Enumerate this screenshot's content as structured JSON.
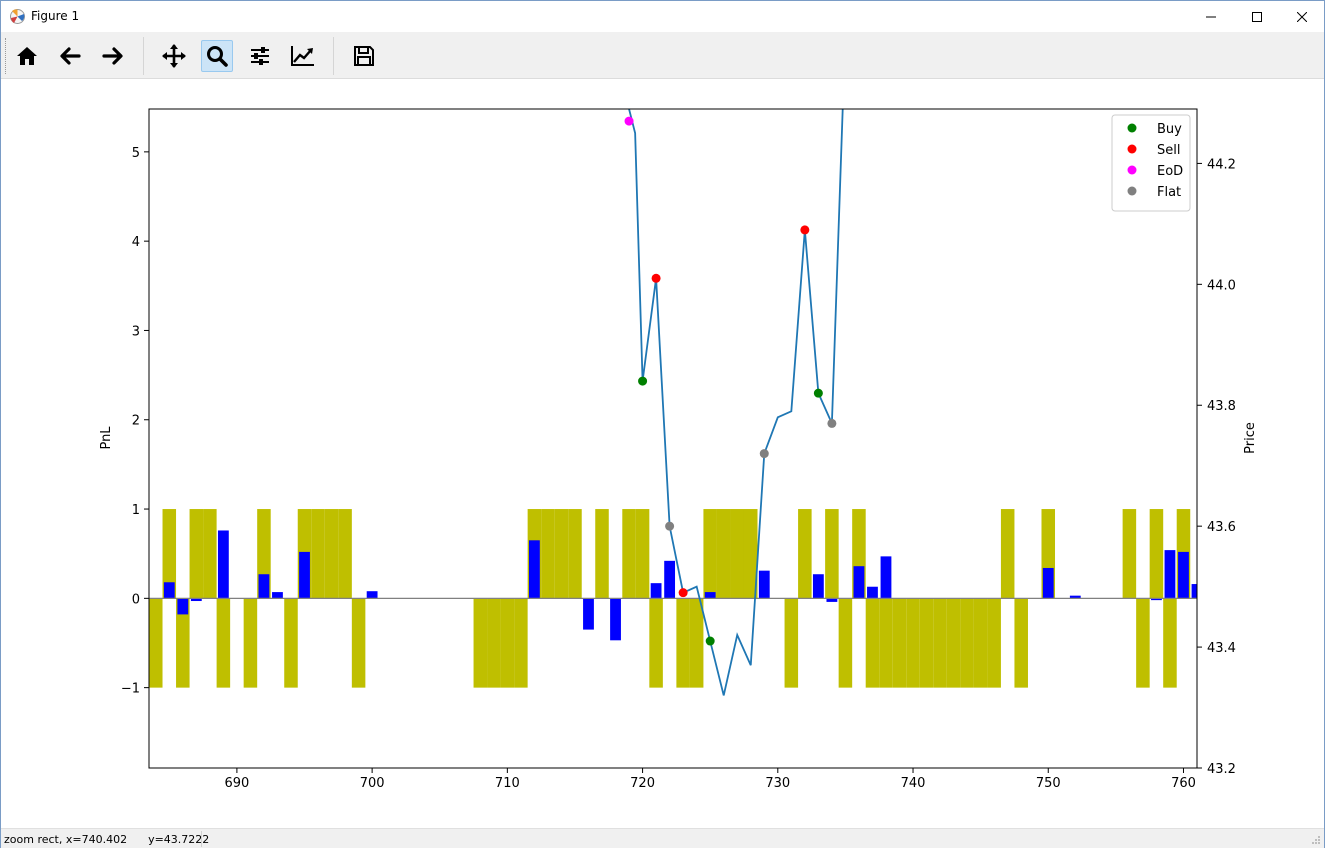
{
  "window": {
    "title": "Figure 1"
  },
  "toolbar": {
    "buttons": [
      {
        "name": "home-button",
        "icon": "home-icon"
      },
      {
        "name": "back-button",
        "icon": "arrow-left-icon"
      },
      {
        "name": "forward-button",
        "icon": "arrow-right-icon"
      },
      {
        "name": "pan-button",
        "icon": "move-icon"
      },
      {
        "name": "zoom-button",
        "icon": "magnifier-icon",
        "active": true
      },
      {
        "name": "subplots-button",
        "icon": "sliders-icon"
      },
      {
        "name": "axes-edit-button",
        "icon": "chart-line-icon"
      },
      {
        "name": "save-button",
        "icon": "floppy-icon"
      }
    ]
  },
  "status": {
    "mode": "zoom rect",
    "x_readout": "x=740.402",
    "y_readout": "y=43.7222"
  },
  "chart_data": {
    "type": "bar+line+scatter",
    "xlabel": "",
    "ylabel_left": "PnL",
    "ylabel_right": "Price",
    "xlim": [
      683.5,
      761
    ],
    "ylim_left": [
      -1.9,
      5.48
    ],
    "ylim_right": [
      43.2,
      44.29
    ],
    "xticks": [
      690,
      700,
      710,
      720,
      730,
      740,
      750,
      760
    ],
    "yticks_left": [
      -1,
      0,
      1,
      2,
      3,
      4,
      5
    ],
    "yticks_right": [
      "43.2",
      "43.4",
      "43.6",
      "43.8",
      "44.0",
      "44.2"
    ],
    "colors": {
      "position": "#bfbf00",
      "pnl": "#0000ff",
      "price": "#1f77b4",
      "buy": "#008000",
      "sell": "#ff0000",
      "eod": "#ff00ff",
      "flat": "#808080",
      "zero_line": "#808080"
    },
    "position_series": [
      [
        684,
        -1
      ],
      [
        685,
        1
      ],
      [
        686,
        -1
      ],
      [
        687,
        1
      ],
      [
        688,
        1
      ],
      [
        689,
        -1
      ],
      [
        690,
        0
      ],
      [
        691,
        -1
      ],
      [
        692,
        1
      ],
      [
        693,
        0
      ],
      [
        694,
        -1
      ],
      [
        695,
        1
      ],
      [
        696,
        1
      ],
      [
        697,
        1
      ],
      [
        698,
        1
      ],
      [
        699,
        -1
      ],
      [
        700,
        0
      ],
      [
        701,
        0
      ],
      [
        702,
        0
      ],
      [
        703,
        0
      ],
      [
        704,
        0
      ],
      [
        705,
        0
      ],
      [
        706,
        0
      ],
      [
        707,
        0
      ],
      [
        708,
        -1
      ],
      [
        709,
        -1
      ],
      [
        710,
        -1
      ],
      [
        711,
        -1
      ],
      [
        712,
        1
      ],
      [
        713,
        1
      ],
      [
        714,
        1
      ],
      [
        715,
        1
      ],
      [
        716,
        0
      ],
      [
        717,
        1
      ],
      [
        718,
        0
      ],
      [
        719,
        1
      ],
      [
        720,
        1
      ],
      [
        721,
        -1
      ],
      [
        722,
        0
      ],
      [
        723,
        -1
      ],
      [
        724,
        -1
      ],
      [
        725,
        1
      ],
      [
        726,
        1
      ],
      [
        727,
        1
      ],
      [
        728,
        1
      ],
      [
        729,
        0
      ],
      [
        730,
        0
      ],
      [
        731,
        -1
      ],
      [
        732,
        1
      ],
      [
        733,
        0
      ],
      [
        734,
        1
      ],
      [
        735,
        -1
      ],
      [
        736,
        1
      ],
      [
        737,
        -1
      ],
      [
        738,
        -1
      ],
      [
        739,
        -1
      ],
      [
        740,
        -1
      ],
      [
        741,
        -1
      ],
      [
        742,
        -1
      ],
      [
        743,
        -1
      ],
      [
        744,
        -1
      ],
      [
        745,
        -1
      ],
      [
        746,
        -1
      ],
      [
        747,
        1
      ],
      [
        748,
        -1
      ],
      [
        749,
        0
      ],
      [
        750,
        1
      ],
      [
        751,
        0
      ],
      [
        752,
        0
      ],
      [
        753,
        0
      ],
      [
        754,
        0
      ],
      [
        755,
        0
      ],
      [
        756,
        1
      ],
      [
        757,
        -1
      ],
      [
        758,
        1
      ],
      [
        759,
        -1
      ],
      [
        760,
        1
      ]
    ],
    "pnl_series": [
      [
        685,
        0.18
      ],
      [
        686,
        -0.18
      ],
      [
        687,
        -0.03
      ],
      [
        689,
        0.76
      ],
      [
        692,
        0.27
      ],
      [
        693,
        0.07
      ],
      [
        695,
        0.52
      ],
      [
        700,
        0.08
      ],
      [
        712,
        0.65
      ],
      [
        716,
        -0.35
      ],
      [
        718,
        -0.47
      ],
      [
        721,
        0.17
      ],
      [
        722,
        0.42
      ],
      [
        725,
        0.07
      ],
      [
        729,
        0.31
      ],
      [
        733,
        0.27
      ],
      [
        734,
        -0.04
      ],
      [
        736,
        0.36
      ],
      [
        737,
        0.13
      ],
      [
        738,
        0.47
      ],
      [
        750,
        0.34
      ],
      [
        752,
        0.03
      ],
      [
        758,
        -0.02
      ],
      [
        759,
        0.54
      ],
      [
        760,
        0.52
      ],
      [
        761,
        0.16
      ]
    ],
    "price_series": [
      [
        719,
        44.29
      ],
      [
        719.45,
        44.25
      ],
      [
        720,
        43.84
      ],
      [
        721,
        44.01
      ],
      [
        722,
        43.6
      ],
      [
        723,
        43.49
      ],
      [
        724,
        43.5
      ],
      [
        725,
        43.41
      ],
      [
        726,
        43.32
      ],
      [
        727,
        43.42
      ],
      [
        728,
        43.37
      ],
      [
        729,
        43.72
      ],
      [
        730,
        43.78
      ],
      [
        731,
        43.79
      ],
      [
        732,
        44.09
      ],
      [
        733,
        43.82
      ],
      [
        734,
        43.77
      ],
      [
        734.8,
        44.29
      ]
    ],
    "trades": [
      {
        "type": "EoD",
        "x": 719,
        "price": 44.27
      },
      {
        "type": "Buy",
        "x": 720,
        "price": 43.84
      },
      {
        "type": "Sell",
        "x": 721,
        "price": 44.01
      },
      {
        "type": "Flat",
        "x": 722,
        "price": 43.6
      },
      {
        "type": "Sell",
        "x": 723,
        "price": 43.49
      },
      {
        "type": "Buy",
        "x": 725,
        "price": 43.41
      },
      {
        "type": "Flat",
        "x": 729,
        "price": 43.72
      },
      {
        "type": "Sell",
        "x": 732,
        "price": 44.09
      },
      {
        "type": "Buy",
        "x": 733,
        "price": 43.82
      },
      {
        "type": "Flat",
        "x": 734,
        "price": 43.77
      }
    ],
    "legend": {
      "placement": "top-right",
      "entries": [
        {
          "label": "Buy",
          "color": "#008000"
        },
        {
          "label": "Sell",
          "color": "#ff0000"
        },
        {
          "label": "EoD",
          "color": "#ff00ff"
        },
        {
          "label": "Flat",
          "color": "#808080"
        }
      ]
    }
  }
}
